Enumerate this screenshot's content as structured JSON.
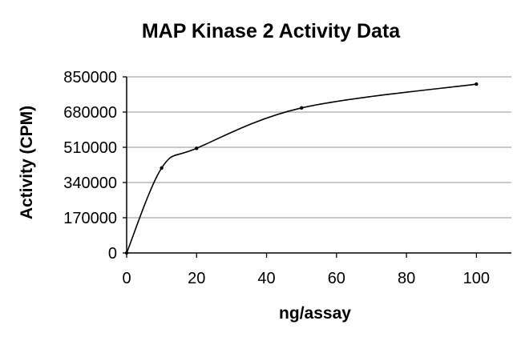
{
  "chart_data": {
    "type": "line",
    "title": "MAP Kinase 2 Activity Data",
    "xlabel": "ng/assay",
    "ylabel": "Activity (CPM)",
    "xlim": [
      0,
      110
    ],
    "ylim": [
      0,
      850000
    ],
    "x_ticks": [
      0,
      20,
      40,
      60,
      80,
      100
    ],
    "y_ticks": [
      0,
      170000,
      340000,
      510000,
      680000,
      850000
    ],
    "x_tick_labels": [
      "0",
      "20",
      "40",
      "60",
      "80",
      "100"
    ],
    "y_tick_labels": [
      "0",
      "170000",
      "340000",
      "510000",
      "680000",
      "850000"
    ],
    "grid": "horizontal",
    "legend": "none",
    "smooth": true,
    "series": [
      {
        "x": [
          0,
          10,
          20,
          50,
          100
        ],
        "y": [
          0,
          410000,
          505000,
          700000,
          815000
        ],
        "color": "#000000"
      }
    ]
  }
}
